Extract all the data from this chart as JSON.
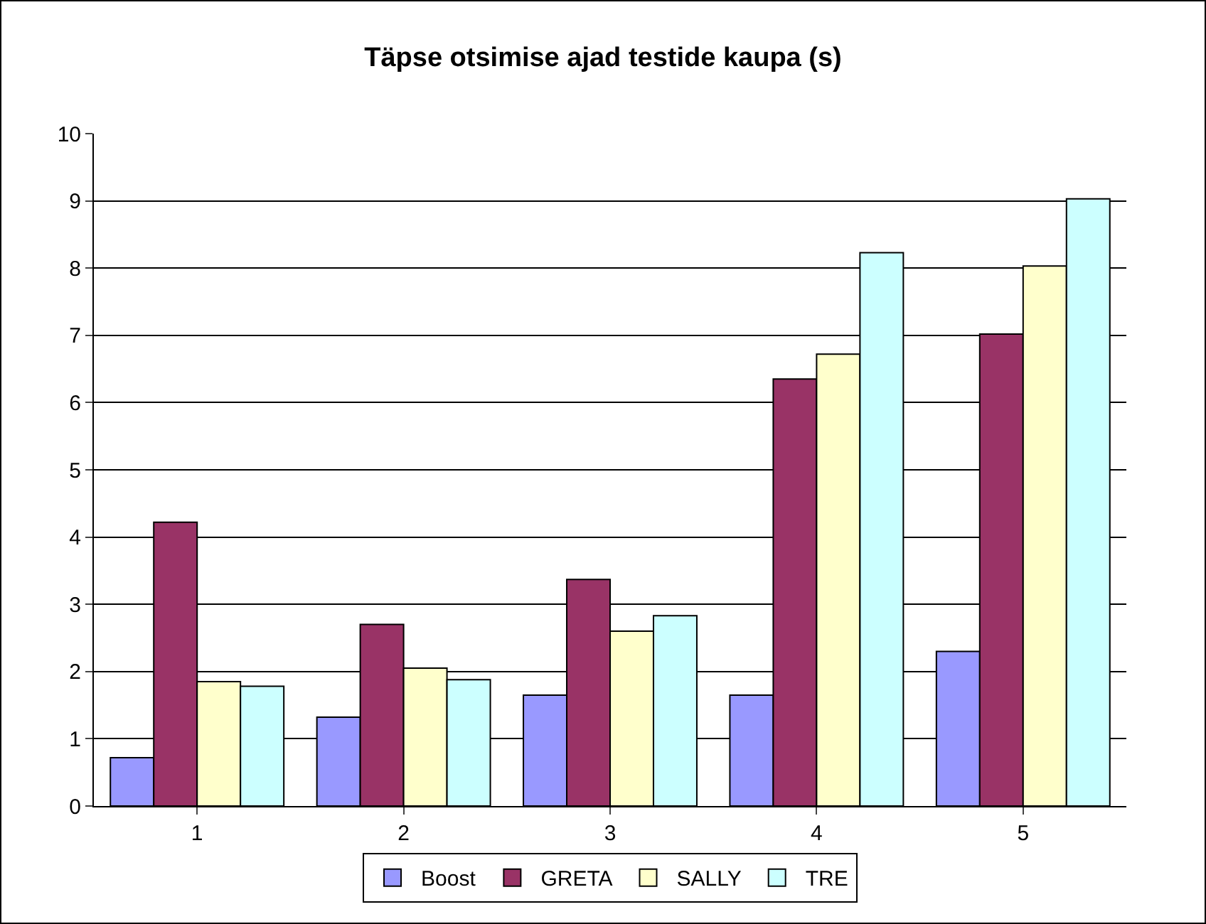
{
  "chart_data": {
    "type": "bar",
    "title": "Täpse otsimise ajad testide kaupa (s)",
    "categories": [
      "1",
      "2",
      "3",
      "4",
      "5"
    ],
    "series": [
      {
        "name": "Boost",
        "color": "#9999ff",
        "values": [
          0.72,
          1.32,
          1.65,
          1.65,
          2.3
        ]
      },
      {
        "name": "GRETA",
        "color": "#993366",
        "values": [
          4.22,
          2.7,
          3.37,
          6.35,
          7.02
        ]
      },
      {
        "name": "SALLY",
        "color": "#ffffcc",
        "values": [
          1.85,
          2.05,
          2.6,
          6.72,
          8.03
        ]
      },
      {
        "name": "TRE",
        "color": "#ccffff",
        "values": [
          1.78,
          1.88,
          2.83,
          8.23,
          9.03
        ]
      }
    ],
    "ylim": [
      0,
      10
    ],
    "yticks": [
      0,
      1,
      2,
      3,
      4,
      5,
      6,
      7,
      8,
      9,
      10
    ],
    "grid": "y",
    "legend": "bottom"
  }
}
